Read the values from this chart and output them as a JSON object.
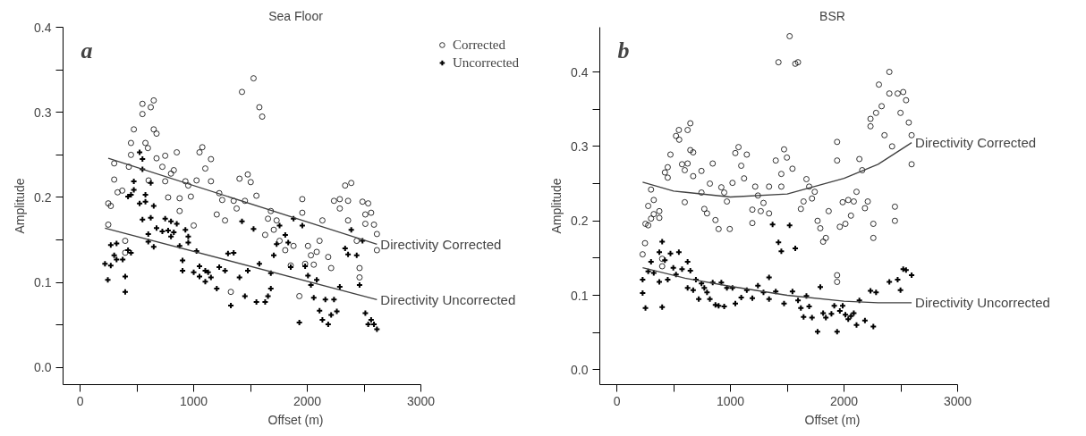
{
  "chart_data": [
    {
      "type": "scatter",
      "title": "Sea Floor",
      "annotations": [
        "a"
      ],
      "xlabel": "Offset (m)",
      "ylabel": "Amplitude",
      "xlim": [
        -150,
        3000
      ],
      "ylim": [
        -0.02,
        0.4
      ],
      "xticks": [
        0,
        {
          "value": 500,
          "label": null
        },
        1000,
        {
          "value": 1500,
          "label": null
        },
        2000,
        {
          "value": 2500,
          "label": null
        },
        3000
      ],
      "yticks": [
        {
          "value": 0.0,
          "label": "0.0"
        },
        {
          "value": 0.05,
          "label": null
        },
        0.1,
        {
          "value": 0.15,
          "label": null
        },
        0.2,
        {
          "value": 0.25,
          "label": null
        },
        0.3,
        {
          "value": 0.35,
          "label": null
        },
        0.4
      ],
      "grid": false,
      "legend": "top right",
      "series": [
        {
          "name": "Corrected",
          "marker": "circle",
          "color": "#000000",
          "x": [
            248,
            270,
            248,
            300,
            300,
            330,
            371,
            397,
            397,
            429,
            448,
            448,
            473,
            549,
            549,
            575,
            597,
            603,
            622,
            648,
            648,
            673,
            673,
            724,
            749,
            749,
            775,
            800,
            825,
            851,
            876,
            876,
            927,
            952,
            975,
            1000,
            1025,
            1051,
            1076,
            1102,
            1152,
            1152,
            1203,
            1225,
            1251,
            1276,
            1327,
            1352,
            1378,
            1403,
            1425,
            1451,
            1476,
            1502,
            1527,
            1552,
            1578,
            1603,
            1629,
            1654,
            1679,
            1705,
            1730,
            1756,
            1806,
            1854,
            1879,
            1956,
            1956,
            1930,
            1981,
            2006,
            2032,
            2057,
            2083,
            2108,
            2133,
            2184,
            2210,
            2235,
            2286,
            2286,
            2333,
            2359,
            2359,
            2387,
            2435,
            2460,
            2460,
            2486,
            2511,
            2536,
            2562,
            2587,
            2613,
            2613,
            2511
          ],
          "values": [
            0.193,
            0.19,
            0.168,
            0.24,
            0.221,
            0.206,
            0.208,
            0.149,
            0.135,
            0.236,
            0.264,
            0.25,
            0.28,
            0.31,
            0.298,
            0.264,
            0.258,
            0.22,
            0.306,
            0.314,
            0.28,
            0.275,
            0.246,
            0.236,
            0.249,
            0.219,
            0.2,
            0.228,
            0.232,
            0.253,
            0.199,
            0.184,
            0.219,
            0.214,
            0.201,
            0.167,
            0.22,
            0.253,
            0.259,
            0.234,
            0.245,
            0.219,
            0.18,
            0.205,
            0.197,
            0.173,
            0.089,
            0.196,
            0.187,
            0.222,
            0.324,
            0.196,
            0.227,
            0.218,
            0.34,
            0.202,
            0.306,
            0.295,
            0.156,
            0.175,
            0.184,
            0.162,
            0.173,
            0.149,
            0.138,
            0.12,
            0.143,
            0.198,
            0.182,
            0.084,
            0.122,
            0.143,
            0.132,
            0.121,
            0.136,
            0.149,
            0.173,
            0.13,
            0.117,
            0.196,
            0.198,
            0.187,
            0.214,
            0.196,
            0.173,
            0.217,
            0.149,
            0.117,
            0.106,
            0.195,
            0.18,
            0.193,
            0.182,
            0.168,
            0.157,
            0.138,
            0.169
          ]
        },
        {
          "name": "Uncorrected",
          "marker": "cross",
          "color": "#000000",
          "x": [
            219,
            244,
            270,
            270,
            300,
            321,
            321,
            375,
            397,
            397,
            422,
            448,
            422,
            448,
            473,
            473,
            524,
            524,
            549,
            549,
            549,
            575,
            575,
            600,
            600,
            622,
            622,
            648,
            648,
            673,
            724,
            749,
            775,
            800,
            800,
            825,
            851,
            876,
            902,
            902,
            927,
            952,
            952,
            1000,
            1025,
            1051,
            1051,
            1102,
            1102,
            1127,
            1152,
            1203,
            1225,
            1276,
            1302,
            1327,
            1352,
            1403,
            1425,
            1451,
            1476,
            1527,
            1552,
            1578,
            1629,
            1654,
            1679,
            1679,
            1705,
            1730,
            1756,
            1806,
            1832,
            1854,
            1879,
            1956,
            1930,
            1981,
            2006,
            2032,
            2057,
            2083,
            2108,
            2133,
            2159,
            2184,
            2210,
            2235,
            2260,
            2286,
            2333,
            2359,
            2387,
            2435,
            2460,
            2486,
            2511,
            2536,
            2562,
            2587,
            2613
          ],
          "values": [
            0.122,
            0.103,
            0.12,
            0.144,
            0.132,
            0.146,
            0.127,
            0.127,
            0.107,
            0.089,
            0.138,
            0.135,
            0.201,
            0.203,
            0.219,
            0.209,
            0.253,
            0.193,
            0.245,
            0.233,
            0.174,
            0.203,
            0.195,
            0.157,
            0.148,
            0.176,
            0.217,
            0.142,
            0.19,
            0.164,
            0.16,
            0.175,
            0.161,
            0.172,
            0.154,
            0.159,
            0.169,
            0.143,
            0.126,
            0.114,
            0.162,
            0.154,
            0.147,
            0.112,
            0.137,
            0.119,
            0.107,
            0.114,
            0.101,
            0.112,
            0.106,
            0.093,
            0.118,
            0.114,
            0.134,
            0.073,
            0.135,
            0.106,
            0.172,
            0.084,
            0.114,
            0.163,
            0.077,
            0.122,
            0.077,
            0.084,
            0.093,
            0.111,
            0.132,
            0.145,
            0.167,
            0.156,
            0.147,
            0.118,
            0.175,
            0.167,
            0.053,
            0.119,
            0.108,
            0.097,
            0.082,
            0.103,
            0.067,
            0.056,
            0.08,
            0.051,
            0.062,
            0.08,
            0.066,
            0.095,
            0.14,
            0.133,
            0.162,
            0.132,
            0.097,
            0.149,
            0.064,
            0.051,
            0.056,
            0.051,
            0.045
          ]
        },
        {
          "name": "Directivity Corrected",
          "type": "line",
          "color": "#404040",
          "x": [
            248,
            2613
          ],
          "values": [
            0.246,
            0.145
          ]
        },
        {
          "name": "Directivity Uncorrected",
          "type": "line",
          "color": "#404040",
          "x": [
            219,
            2613
          ],
          "values": [
            0.164,
            0.08
          ]
        }
      ]
    },
    {
      "type": "scatter",
      "title": "BSR",
      "annotations": [
        "b"
      ],
      "xlabel": "Offset (m)",
      "ylabel": "Amplitude",
      "xlim": [
        -150,
        3000
      ],
      "ylim": [
        -0.02,
        0.46
      ],
      "xticks": [
        0,
        {
          "value": 500,
          "label": null
        },
        1000,
        {
          "value": 1500,
          "label": null
        },
        2000,
        {
          "value": 2500,
          "label": null
        },
        3000
      ],
      "yticks": [
        {
          "value": 0.0,
          "label": "0.0"
        },
        {
          "value": 0.05,
          "label": null
        },
        0.1,
        {
          "value": 0.15,
          "label": null
        },
        0.2,
        {
          "value": 0.25,
          "label": null
        },
        0.3,
        {
          "value": 0.35,
          "label": null
        },
        0.4
      ],
      "grid": false,
      "series": [
        {
          "marker": "circle",
          "color": "#000000",
          "x": [
            227,
            248,
            252,
            276,
            276,
            301,
            301,
            325,
            325,
            374,
            374,
            399,
            399,
            423,
            448,
            448,
            472,
            521,
            546,
            549,
            574,
            598,
            598,
            623,
            623,
            647,
            647,
            672,
            672,
            745,
            745,
            770,
            794,
            819,
            844,
            868,
            896,
            920,
            945,
            969,
            994,
            1018,
            1043,
            1071,
            1095,
            1120,
            1144,
            1193,
            1193,
            1218,
            1242,
            1267,
            1291,
            1340,
            1340,
            1399,
            1423,
            1448,
            1448,
            1472,
            1497,
            1521,
            1546,
            1571,
            1595,
            1620,
            1644,
            1669,
            1693,
            1718,
            1742,
            1767,
            1791,
            1816,
            1840,
            1865,
            1939,
            1939,
            1939,
            1939,
            1963,
            1988,
            2012,
            2037,
            2061,
            2086,
            2110,
            2135,
            2160,
            2184,
            2209,
            2233,
            2233,
            2258,
            2258,
            2282,
            2307,
            2331,
            2356,
            2399,
            2399,
            2423,
            2448,
            2448,
            2472,
            2497,
            2521,
            2546,
            2570,
            2595,
            2595
          ],
          "values": [
            0.155,
            0.17,
            0.196,
            0.194,
            0.22,
            0.242,
            0.203,
            0.228,
            0.209,
            0.213,
            0.204,
            0.149,
            0.139,
            0.265,
            0.272,
            0.258,
            0.289,
            0.314,
            0.322,
            0.309,
            0.276,
            0.268,
            0.225,
            0.322,
            0.277,
            0.331,
            0.295,
            0.292,
            0.26,
            0.267,
            0.238,
            0.216,
            0.21,
            0.25,
            0.277,
            0.201,
            0.189,
            0.245,
            0.238,
            0.226,
            0.189,
            0.251,
            0.291,
            0.299,
            0.274,
            0.257,
            0.289,
            0.197,
            0.215,
            0.246,
            0.234,
            0.213,
            0.224,
            0.21,
            0.246,
            0.281,
            0.413,
            0.246,
            0.263,
            0.296,
            0.285,
            0.448,
            0.27,
            0.411,
            0.413,
            0.216,
            0.226,
            0.256,
            0.246,
            0.23,
            0.239,
            0.2,
            0.19,
            0.172,
            0.177,
            0.213,
            0.306,
            0.281,
            0.127,
            0.118,
            0.192,
            0.225,
            0.196,
            0.228,
            0.207,
            0.226,
            0.239,
            0.283,
            0.268,
            0.217,
            0.226,
            0.337,
            0.327,
            0.196,
            0.177,
            0.345,
            0.383,
            0.354,
            0.315,
            0.4,
            0.371,
            0.3,
            0.219,
            0.2,
            0.371,
            0.345,
            0.373,
            0.362,
            0.332,
            0.315,
            0.276
          ]
        },
        {
          "marker": "cross",
          "color": "#000000",
          "x": [
            227,
            227,
            252,
            276,
            301,
            325,
            374,
            374,
            399,
            399,
            423,
            448,
            472,
            497,
            521,
            546,
            574,
            623,
            623,
            647,
            672,
            696,
            721,
            745,
            770,
            794,
            819,
            844,
            868,
            896,
            920,
            945,
            969,
            1018,
            1043,
            1095,
            1144,
            1193,
            1242,
            1291,
            1340,
            1340,
            1371,
            1399,
            1423,
            1448,
            1472,
            1521,
            1546,
            1571,
            1595,
            1620,
            1644,
            1669,
            1693,
            1718,
            1767,
            1791,
            1816,
            1840,
            1889,
            1914,
            1939,
            1963,
            1988,
            2012,
            2037,
            2061,
            2086,
            2110,
            2135,
            2184,
            2233,
            2258,
            2282,
            2399,
            2472,
            2497,
            2521,
            2546,
            2595
          ],
          "values": [
            0.103,
            0.121,
            0.083,
            0.132,
            0.145,
            0.13,
            0.118,
            0.158,
            0.084,
            0.172,
            0.147,
            0.121,
            0.156,
            0.137,
            0.128,
            0.158,
            0.135,
            0.145,
            0.11,
            0.133,
            0.107,
            0.121,
            0.095,
            0.116,
            0.11,
            0.104,
            0.095,
            0.117,
            0.087,
            0.086,
            0.117,
            0.085,
            0.11,
            0.11,
            0.089,
            0.097,
            0.107,
            0.096,
            0.113,
            0.104,
            0.124,
            0.095,
            0.195,
            0.105,
            0.171,
            0.159,
            0.089,
            0.194,
            0.105,
            0.163,
            0.093,
            0.083,
            0.071,
            0.099,
            0.085,
            0.07,
            0.051,
            0.111,
            0.076,
            0.07,
            0.075,
            0.086,
            0.051,
            0.079,
            0.086,
            0.074,
            0.068,
            0.072,
            0.076,
            0.06,
            0.093,
            0.066,
            0.106,
            0.058,
            0.104,
            0.118,
            0.121,
            0.107,
            0.135,
            0.134,
            0.127
          ]
        },
        {
          "name": "Directivity Corrected",
          "type": "line",
          "color": "#404040",
          "x": [
            227,
            500,
            1000,
            1500,
            2000,
            2300,
            2595
          ],
          "values": [
            0.252,
            0.24,
            0.232,
            0.236,
            0.257,
            0.276,
            0.305
          ]
        },
        {
          "name": "Directivity Uncorrected",
          "type": "line",
          "color": "#404040",
          "x": [
            227,
            600,
            1000,
            1500,
            2000,
            2300,
            2595
          ],
          "values": [
            0.137,
            0.123,
            0.112,
            0.1,
            0.092,
            0.09,
            0.09
          ]
        }
      ]
    }
  ]
}
